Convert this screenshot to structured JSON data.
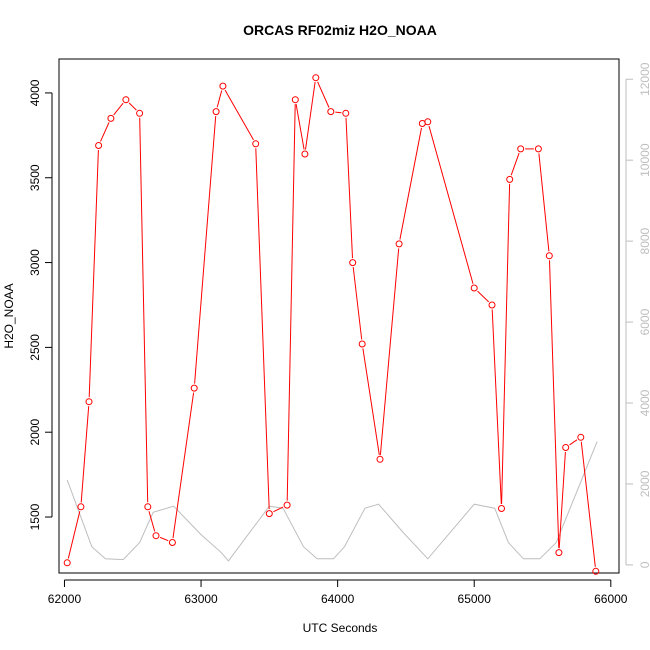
{
  "colors": {
    "primary_series": "#ff0000",
    "secondary_series": "#bebebe",
    "axis": "#000000",
    "secondary_axis": "#bebebe"
  },
  "chart_data": {
    "type": "line",
    "title": "ORCAS RF02miz H2O_NOAA",
    "xlabel": "UTC Seconds",
    "ylabel": "H2O_NOAA",
    "xlim": [
      61960,
      66060
    ],
    "ylim": [
      1170,
      4200
    ],
    "y2lim": [
      -200,
      12500
    ],
    "x_ticks": [
      62000,
      63000,
      64000,
      65000,
      66000
    ],
    "y_ticks": [
      1500,
      2000,
      2500,
      3000,
      3500,
      4000
    ],
    "y2_ticks": [
      0,
      2000,
      4000,
      6000,
      8000,
      10000,
      12000
    ],
    "grid": false,
    "series": [
      {
        "axis": "left",
        "style": "line-with-open-circles",
        "x": [
          62020,
          62120,
          62180,
          62250,
          62340,
          62450,
          62550,
          62610,
          62670,
          62790,
          62950,
          63110,
          63160,
          63400,
          63500,
          63630,
          63690,
          63760,
          63840,
          63950,
          64060,
          64110,
          64180,
          64310,
          64450,
          64620,
          64660,
          65000,
          65130,
          65200,
          65260,
          65340,
          65470,
          65550,
          65620,
          65670,
          65780,
          65890
        ],
        "y": [
          1230,
          1560,
          2180,
          3690,
          3850,
          3960,
          3880,
          1560,
          1390,
          1350,
          2260,
          3890,
          4040,
          3700,
          1520,
          1570,
          3960,
          3640,
          4090,
          3890,
          3880,
          3000,
          2520,
          1840,
          3110,
          3820,
          3830,
          2850,
          2750,
          1550,
          3490,
          3670,
          3670,
          3040,
          1290,
          1910,
          1970,
          1180
        ]
      },
      {
        "axis": "right",
        "style": "line",
        "x": [
          62020,
          62200,
          62300,
          62430,
          62550,
          62650,
          62800,
          63000,
          63150,
          63200,
          63500,
          63600,
          63750,
          63850,
          63970,
          64050,
          64200,
          64300,
          64480,
          64660,
          65000,
          65150,
          65250,
          65360,
          65480,
          65600,
          65900
        ],
        "y": [
          2100,
          450,
          150,
          130,
          550,
          1300,
          1450,
          750,
          300,
          100,
          1450,
          1400,
          450,
          150,
          150,
          450,
          1400,
          1500,
          800,
          150,
          1500,
          1400,
          550,
          150,
          150,
          550,
          3050
        ]
      }
    ]
  }
}
